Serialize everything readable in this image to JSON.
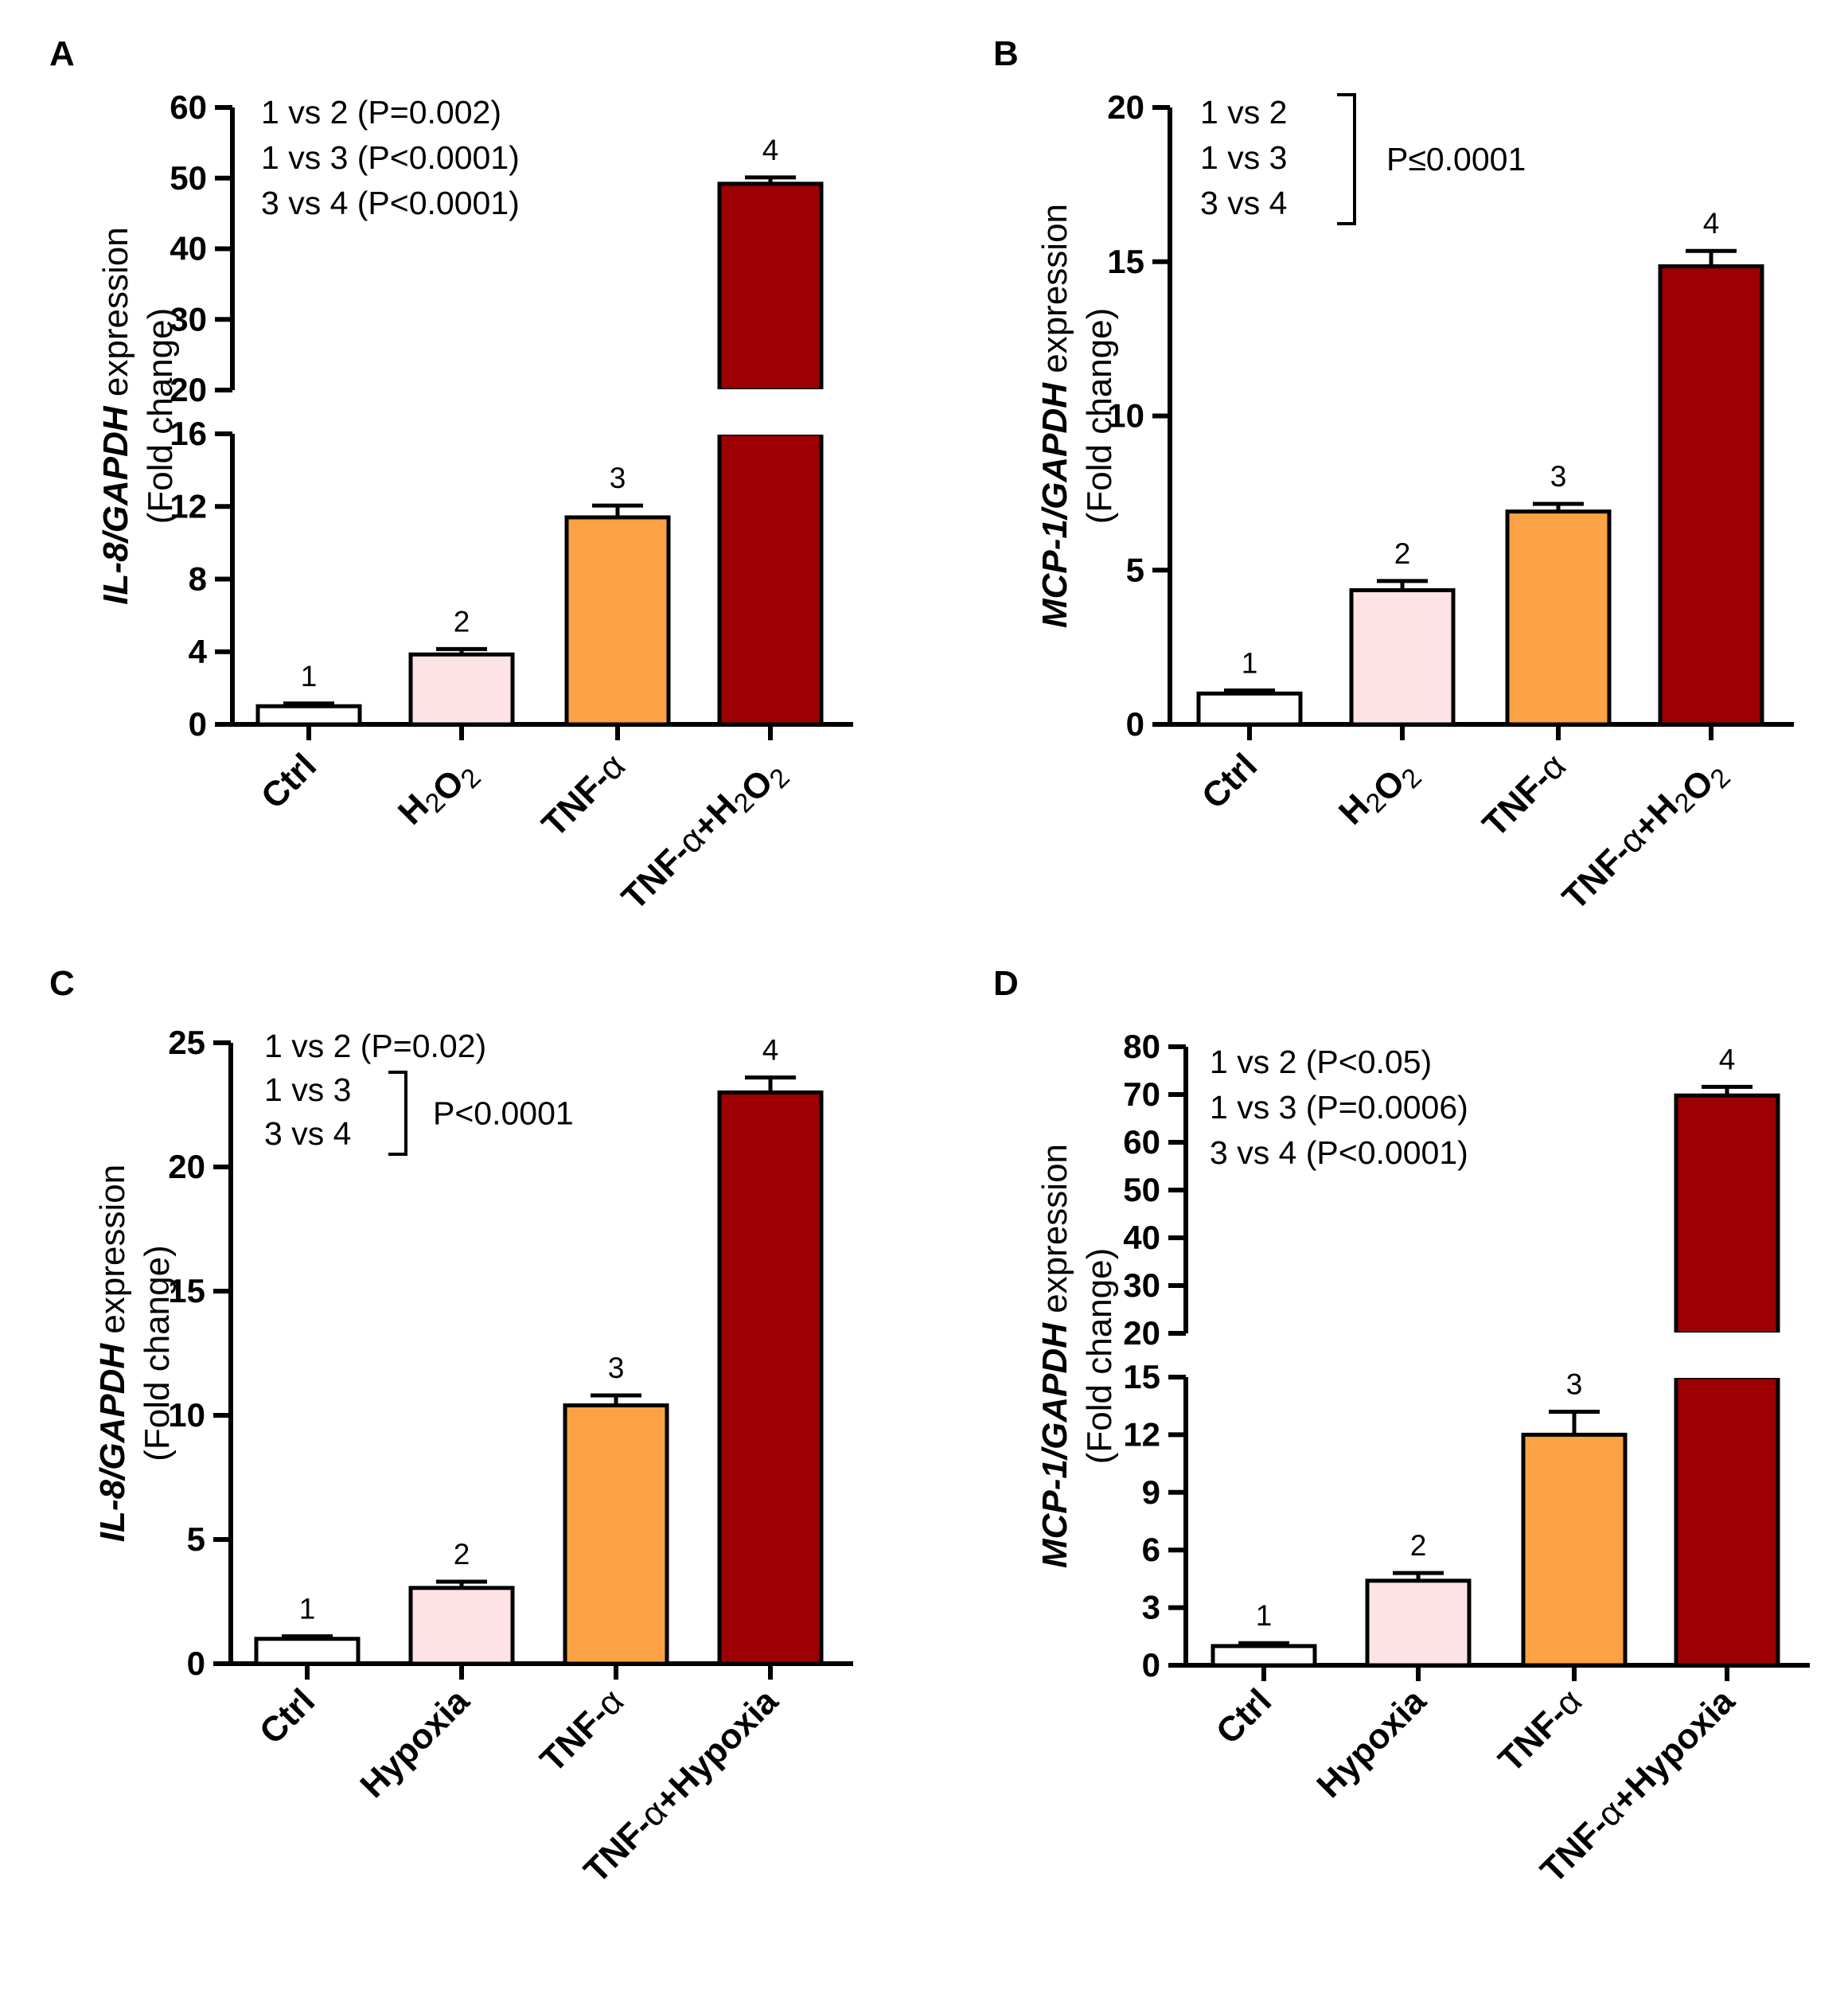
{
  "colors": {
    "ctrl": "#ffffff",
    "h2o2": "#fde3e6",
    "tnf": "#fba244",
    "combo": "#9c0002",
    "stroke": "#000000"
  },
  "chart_data": [
    {
      "type": "bar",
      "panel": "A",
      "ylabel_gene": "IL-8/GAPDH",
      "ylabel_rest": " expression",
      "ylabel_sub": "(Fold change)",
      "categories": [
        [
          "Ctrl"
        ],
        [
          "H",
          "2",
          "O",
          "2"
        ],
        [
          "TNF-",
          "α"
        ],
        [
          "TNF-",
          "α",
          "+H",
          "2",
          "O",
          "2"
        ]
      ],
      "values": [
        1.0,
        3.85,
        11.4,
        49.2
      ],
      "errors": [
        0.15,
        0.3,
        0.65,
        0.9
      ],
      "bar_labels": [
        "1",
        "2",
        "3",
        "4"
      ],
      "axis_break": true,
      "lower_range": [
        0,
        16
      ],
      "upper_range": [
        20,
        60
      ],
      "lower_ticks": [
        "0",
        "4",
        "8",
        "12",
        "16"
      ],
      "upper_ticks": [
        "20",
        "30",
        "40",
        "50",
        "60"
      ],
      "annotation": {
        "lines": [
          "1 vs 2 (P=0.002)",
          "1 vs 3 (P<0.0001)",
          "3 vs 4 (P<0.0001)"
        ]
      }
    },
    {
      "type": "bar",
      "panel": "B",
      "ylabel_gene": "MCP-1/GAPDH",
      "ylabel_rest": " expression",
      "ylabel_sub": "(Fold change)",
      "categories": [
        [
          "Ctrl"
        ],
        [
          "H",
          "2",
          "O",
          "2"
        ],
        [
          "TNF-",
          "α"
        ],
        [
          "TNF-",
          "α",
          "+H",
          "2",
          "O",
          "2"
        ]
      ],
      "values": [
        1.0,
        4.35,
        6.9,
        14.85
      ],
      "errors": [
        0.1,
        0.3,
        0.25,
        0.5
      ],
      "bar_labels": [
        "1",
        "2",
        "3",
        "4"
      ],
      "ylim": [
        0,
        20
      ],
      "ticks": [
        "0",
        "5",
        "10",
        "15",
        "20"
      ],
      "annotation": {
        "lines": [
          "1 vs 2",
          "1 vs 3",
          "3 vs 4"
        ],
        "bracket_text": "P≤0.0001"
      }
    },
    {
      "type": "bar",
      "panel": "C",
      "ylabel_gene": "IL-8/GAPDH",
      "ylabel_rest": " expression",
      "ylabel_sub": "(Fold change)",
      "categories": [
        [
          "Ctrl"
        ],
        [
          "Hypoxia"
        ],
        [
          "TNF-",
          "α"
        ],
        [
          "TNF-",
          "α",
          "+Hypoxia"
        ]
      ],
      "values": [
        1.0,
        3.05,
        10.4,
        23.0
      ],
      "errors": [
        0.1,
        0.25,
        0.4,
        0.6
      ],
      "bar_labels": [
        "1",
        "2",
        "3",
        "4"
      ],
      "ylim": [
        0,
        25
      ],
      "ticks": [
        "0",
        "5",
        "10",
        "15",
        "20",
        "25"
      ],
      "annotation": {
        "lines": [
          "1 vs 2 (P=0.02)",
          "1 vs 3",
          "3 vs 4"
        ],
        "bracket_text": "P<0.0001"
      }
    },
    {
      "type": "bar",
      "panel": "D",
      "ylabel_gene": "MCP-1/GAPDH",
      "ylabel_rest": " expression",
      "ylabel_sub": "(Fold change)",
      "categories": [
        [
          "Ctrl"
        ],
        [
          "Hypoxia"
        ],
        [
          "TNF-",
          "α"
        ],
        [
          "TNF-",
          "α",
          "+Hypoxia"
        ]
      ],
      "values": [
        1.0,
        4.4,
        12.0,
        69.8
      ],
      "errors": [
        0.15,
        0.4,
        1.2,
        1.8
      ],
      "bar_labels": [
        "1",
        "2",
        "3",
        "4"
      ],
      "axis_break": true,
      "lower_range": [
        0,
        15
      ],
      "upper_range": [
        20,
        80
      ],
      "lower_ticks": [
        "0",
        "3",
        "6",
        "9",
        "12",
        "15"
      ],
      "upper_ticks": [
        "20",
        "30",
        "40",
        "50",
        "60",
        "70",
        "80"
      ],
      "annotation": {
        "lines": [
          "1 vs 2 (P<0.05)",
          "1 vs 3 (P=0.0006)",
          "3 vs 4 (P<0.0001)"
        ]
      }
    }
  ]
}
